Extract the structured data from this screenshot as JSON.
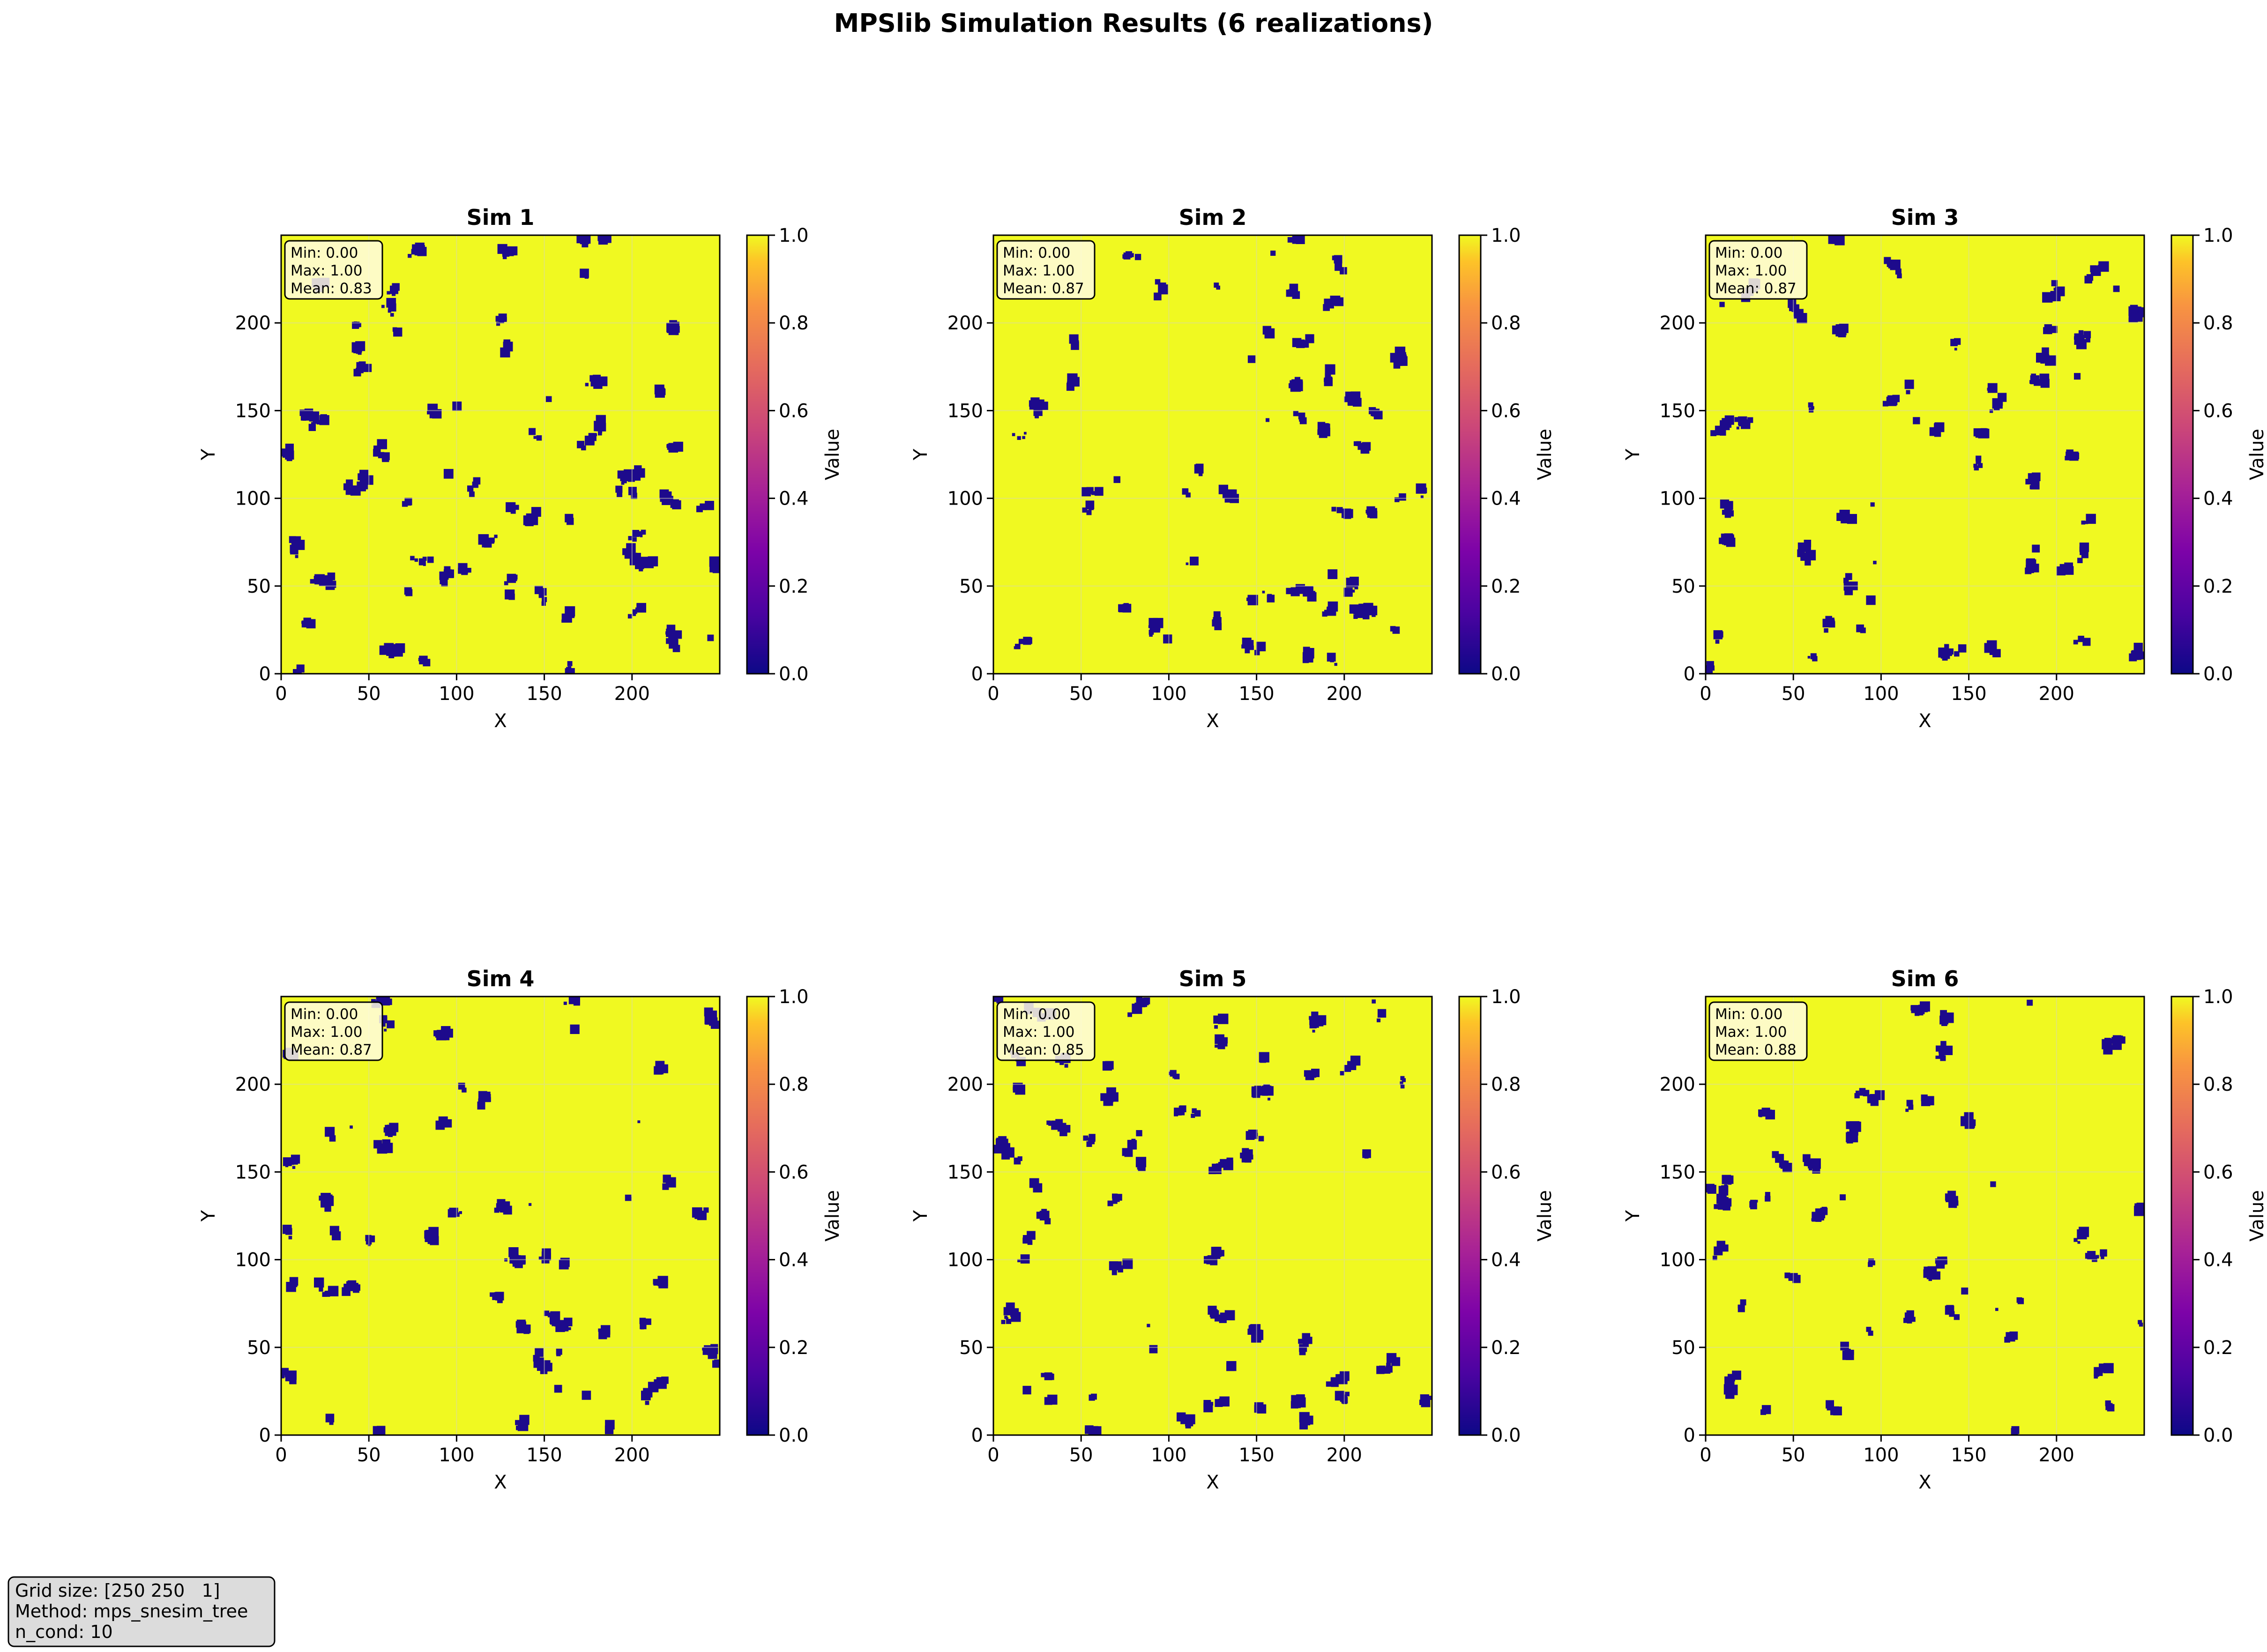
{
  "figure": {
    "title": "MPSlib Simulation Results (6 realizations)"
  },
  "chart_data": [
    {
      "type": "heatmap",
      "title": "Sim 1",
      "xlabel": "X",
      "ylabel": "Y",
      "xlim": [
        0,
        250
      ],
      "ylim": [
        0,
        250
      ],
      "xticks": [
        0,
        50,
        100,
        150,
        200
      ],
      "yticks": [
        0,
        50,
        100,
        150,
        200
      ],
      "grid": true,
      "colorbar": {
        "label": "Value",
        "range": [
          0,
          1
        ],
        "ticks": [
          "0.0",
          "0.2",
          "0.4",
          "0.6",
          "0.8",
          "1.0"
        ],
        "colormap": "plasma"
      },
      "stats": [
        "Min: 0.00",
        "Max: 1.00",
        "Mean: 0.83"
      ],
      "values": {
        "min": 0.0,
        "max": 1.0,
        "mean": 0.83
      }
    },
    {
      "type": "heatmap",
      "title": "Sim 2",
      "xlabel": "X",
      "ylabel": "Y",
      "xlim": [
        0,
        250
      ],
      "ylim": [
        0,
        250
      ],
      "xticks": [
        0,
        50,
        100,
        150,
        200
      ],
      "yticks": [
        0,
        50,
        100,
        150,
        200
      ],
      "grid": true,
      "colorbar": {
        "label": "Value",
        "range": [
          0,
          1
        ],
        "ticks": [
          "0.0",
          "0.2",
          "0.4",
          "0.6",
          "0.8",
          "1.0"
        ],
        "colormap": "plasma"
      },
      "stats": [
        "Min: 0.00",
        "Max: 1.00",
        "Mean: 0.87"
      ],
      "values": {
        "min": 0.0,
        "max": 1.0,
        "mean": 0.87
      }
    },
    {
      "type": "heatmap",
      "title": "Sim 3",
      "xlabel": "X",
      "ylabel": "Y",
      "xlim": [
        0,
        250
      ],
      "ylim": [
        0,
        250
      ],
      "xticks": [
        0,
        50,
        100,
        150,
        200
      ],
      "yticks": [
        0,
        50,
        100,
        150,
        200
      ],
      "grid": true,
      "colorbar": {
        "label": "Value",
        "range": [
          0,
          1
        ],
        "ticks": [
          "0.0",
          "0.2",
          "0.4",
          "0.6",
          "0.8",
          "1.0"
        ],
        "colormap": "plasma"
      },
      "stats": [
        "Min: 0.00",
        "Max: 1.00",
        "Mean: 0.87"
      ],
      "values": {
        "min": 0.0,
        "max": 1.0,
        "mean": 0.87
      }
    },
    {
      "type": "heatmap",
      "title": "Sim 4",
      "xlabel": "X",
      "ylabel": "Y",
      "xlim": [
        0,
        250
      ],
      "ylim": [
        0,
        250
      ],
      "xticks": [
        0,
        50,
        100,
        150,
        200
      ],
      "yticks": [
        0,
        50,
        100,
        150,
        200
      ],
      "grid": true,
      "colorbar": {
        "label": "Value",
        "range": [
          0,
          1
        ],
        "ticks": [
          "0.0",
          "0.2",
          "0.4",
          "0.6",
          "0.8",
          "1.0"
        ],
        "colormap": "plasma"
      },
      "stats": [
        "Min: 0.00",
        "Max: 1.00",
        "Mean: 0.87"
      ],
      "values": {
        "min": 0.0,
        "max": 1.0,
        "mean": 0.87
      }
    },
    {
      "type": "heatmap",
      "title": "Sim 5",
      "xlabel": "X",
      "ylabel": "Y",
      "xlim": [
        0,
        250
      ],
      "ylim": [
        0,
        250
      ],
      "xticks": [
        0,
        50,
        100,
        150,
        200
      ],
      "yticks": [
        0,
        50,
        100,
        150,
        200
      ],
      "grid": true,
      "colorbar": {
        "label": "Value",
        "range": [
          0,
          1
        ],
        "ticks": [
          "0.0",
          "0.2",
          "0.4",
          "0.6",
          "0.8",
          "1.0"
        ],
        "colormap": "plasma"
      },
      "stats": [
        "Min: 0.00",
        "Max: 1.00",
        "Mean: 0.85"
      ],
      "values": {
        "min": 0.0,
        "max": 1.0,
        "mean": 0.85
      }
    },
    {
      "type": "heatmap",
      "title": "Sim 6",
      "xlabel": "X",
      "ylabel": "Y",
      "xlim": [
        0,
        250
      ],
      "ylim": [
        0,
        250
      ],
      "xticks": [
        0,
        50,
        100,
        150,
        200
      ],
      "yticks": [
        0,
        50,
        100,
        150,
        200
      ],
      "grid": true,
      "colorbar": {
        "label": "Value",
        "range": [
          0,
          1
        ],
        "ticks": [
          "0.0",
          "0.2",
          "0.4",
          "0.6",
          "0.8",
          "1.0"
        ],
        "colormap": "plasma"
      },
      "stats": [
        "Min: 0.00",
        "Max: 1.00",
        "Mean: 0.88"
      ],
      "values": {
        "min": 0.0,
        "max": 1.0,
        "mean": 0.88
      }
    }
  ],
  "info_box": {
    "lines": [
      "Grid size: [250 250   1]",
      "Method: mps_snesim_tree",
      "n_cond: 10"
    ]
  },
  "colors": {
    "high": "#f0f921",
    "low": "#1d0a8c",
    "grid": "#d8d8b0",
    "stats_box_bg": "#fffbe0",
    "info_box_bg": "#dcdcdc"
  }
}
